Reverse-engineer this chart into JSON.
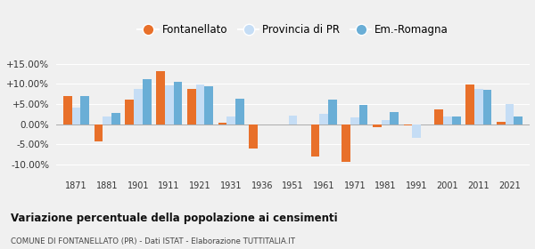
{
  "years": [
    1871,
    1881,
    1901,
    1911,
    1921,
    1931,
    1936,
    1951,
    1961,
    1971,
    1981,
    1991,
    2001,
    2011,
    2021
  ],
  "fontanellato": [
    7.0,
    -4.2,
    6.2,
    13.2,
    8.7,
    0.3,
    -6.0,
    0.0,
    -8.0,
    -9.5,
    -0.8,
    -0.3,
    3.7,
    9.8,
    0.5
  ],
  "provincia_pr": [
    4.0,
    2.0,
    8.8,
    9.7,
    9.8,
    2.0,
    -0.2,
    2.2,
    2.5,
    1.7,
    1.1,
    -3.5,
    2.0,
    8.7,
    5.0
  ],
  "em_romagna": [
    6.9,
    2.8,
    11.2,
    10.5,
    9.5,
    6.3,
    null,
    null,
    6.2,
    4.7,
    3.0,
    null,
    2.0,
    8.6,
    2.0
  ],
  "color_font": "#e8702a",
  "color_pr": "#c5ddf5",
  "color_em": "#6aaed6",
  "bg_color": "#f0f0f0",
  "title": "Variazione percentuale della popolazione ai censimenti",
  "subtitle": "COMUNE DI FONTANELLATO (PR) - Dati ISTAT - Elaborazione TUTTITALIA.IT",
  "yticks": [
    -10.0,
    -5.0,
    0.0,
    5.0,
    10.0,
    15.0
  ],
  "ylim": [
    -12.5,
    18.5
  ],
  "yticklabels": [
    "-10.00%",
    "-5.00%",
    "0.00%",
    "+5.00%",
    "+10.00%",
    "+15.00%"
  ],
  "legend_labels": [
    "Fontanellato",
    "Provincia di PR",
    "Em.-Romagna"
  ],
  "bar_width": 0.28
}
